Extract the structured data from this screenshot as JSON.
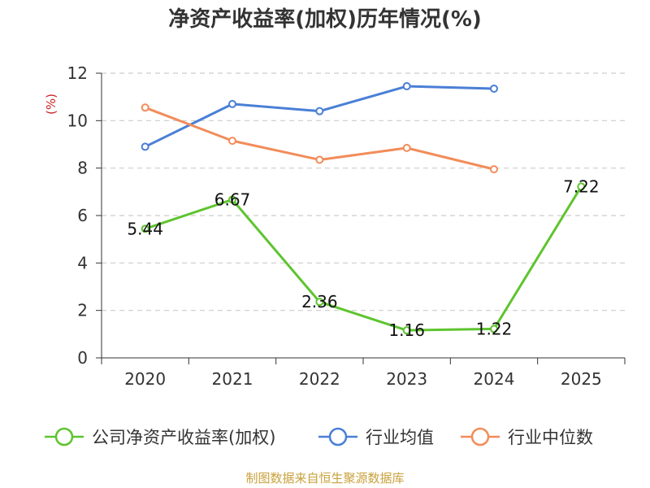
{
  "chart_data": {
    "type": "line",
    "title": "净资产收益率(加权)历年情况(%)",
    "unit_label": "(%)",
    "categories": [
      "2020",
      "2021",
      "2022",
      "2023",
      "2024",
      "2025"
    ],
    "ylim": [
      0,
      12
    ],
    "yticks": [
      0,
      2,
      4,
      6,
      8,
      10,
      12
    ],
    "grid": true,
    "legend_position": "bottom",
    "series": [
      {
        "name": "公司净资产收益率(加权)",
        "color": "#5ec42f",
        "values": [
          5.44,
          6.67,
          2.36,
          1.16,
          1.22,
          7.22
        ],
        "labels": [
          "5.44",
          "6.67",
          "2.36",
          "1.16",
          "1.22",
          "7.22"
        ]
      },
      {
        "name": "行业均值",
        "color": "#4a7fd6",
        "values": [
          8.9,
          10.7,
          10.4,
          11.45,
          11.35,
          null
        ]
      },
      {
        "name": "行业中位数",
        "color": "#f28c5a",
        "values": [
          10.55,
          9.15,
          8.35,
          8.85,
          7.95,
          null
        ]
      }
    ]
  },
  "source": {
    "text": "制图数据来自恒生聚源数据库",
    "color": "#c9a13c"
  },
  "colors": {
    "unit": "#cc2222",
    "grid": "#cccccc",
    "axis": "#333333"
  }
}
